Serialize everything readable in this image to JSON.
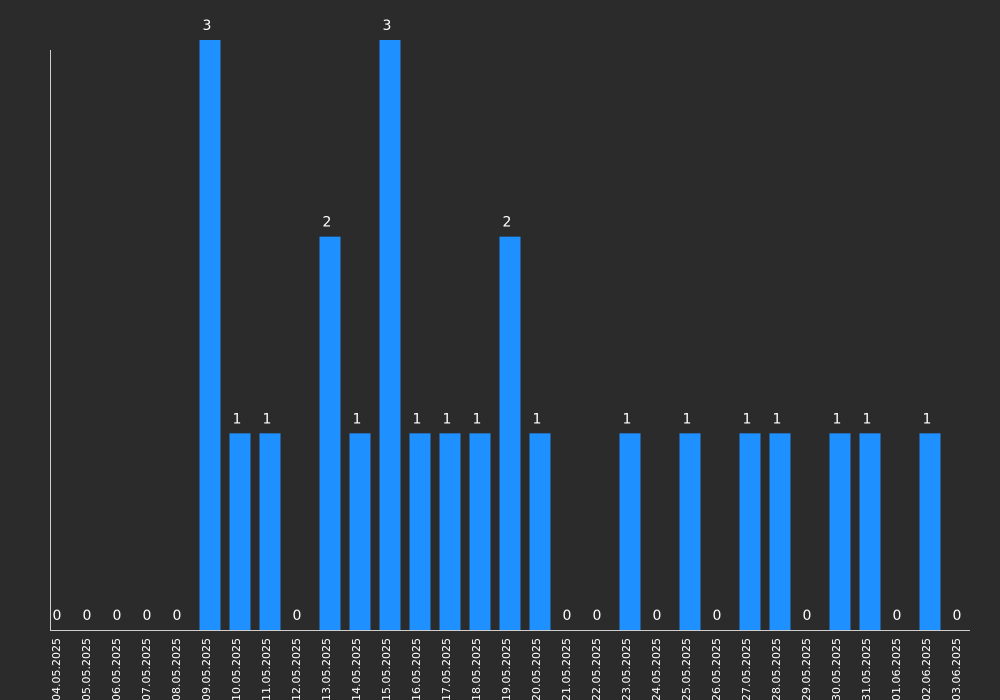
{
  "chart_data": {
    "type": "bar",
    "categories": [
      "04.05.2025",
      "05.05.2025",
      "06.05.2025",
      "07.05.2025",
      "08.05.2025",
      "09.05.2025",
      "10.05.2025",
      "11.05.2025",
      "12.05.2025",
      "13.05.2025",
      "14.05.2025",
      "15.05.2025",
      "16.05.2025",
      "17.05.2025",
      "18.05.2025",
      "19.05.2025",
      "20.05.2025",
      "21.05.2025",
      "22.05.2025",
      "23.05.2025",
      "24.05.2025",
      "25.05.2025",
      "26.05.2025",
      "27.05.2025",
      "28.05.2025",
      "29.05.2025",
      "30.05.2025",
      "31.05.2025",
      "01.06.2025",
      "02.06.2025",
      "03.06.2025"
    ],
    "values": [
      0,
      0,
      0,
      0,
      0,
      3,
      1,
      1,
      0,
      2,
      1,
      3,
      1,
      1,
      1,
      2,
      1,
      0,
      0,
      1,
      0,
      1,
      0,
      1,
      1,
      0,
      1,
      1,
      0,
      1,
      0
    ],
    "title": "",
    "xlabel": "",
    "ylabel": "",
    "ylim": [
      0,
      3
    ],
    "grid": false,
    "legend": "none",
    "colors": {
      "background": "#2b2b2b",
      "bar": "#1e90ff",
      "text": "#ffffff",
      "axis": "#cfcfcf"
    }
  }
}
